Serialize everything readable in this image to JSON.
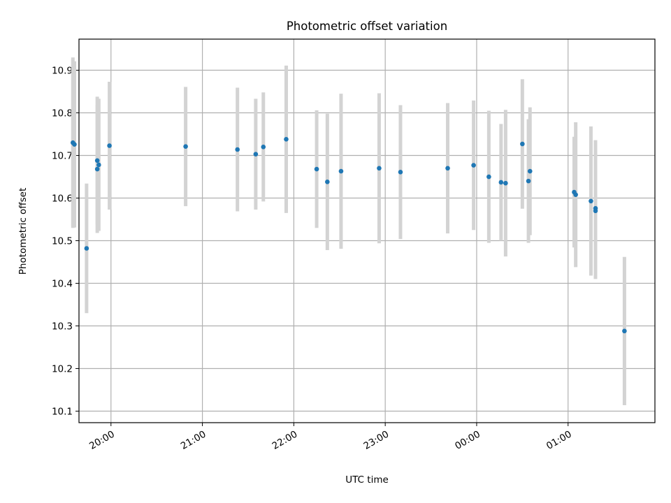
{
  "chart_data": {
    "type": "scatter",
    "title": "Photometric offset variation",
    "xlabel": "UTC time",
    "ylabel": "Photometric offset",
    "xlim": [
      "19:39",
      "01:57"
    ],
    "ylim": [
      10.073,
      10.973
    ],
    "grid": true,
    "x_ticks": [
      "20:00",
      "21:00",
      "22:00",
      "23:00",
      "00:00",
      "01:00"
    ],
    "y_ticks": [
      "10.1",
      "10.2",
      "10.3",
      "10.4",
      "10.5",
      "10.6",
      "10.7",
      "10.8",
      "10.9"
    ],
    "colors": {
      "points": "#1f77b4",
      "errorbars": "#d3d3d3",
      "grid": "#b0b0b0"
    },
    "series": [
      {
        "points": [
          {
            "x": "19:35",
            "y": 10.73,
            "err": 0.2
          },
          {
            "x": "19:36",
            "y": 10.726,
            "err": 0.195
          },
          {
            "x": "19:44",
            "y": 10.482,
            "err": 0.152
          },
          {
            "x": "19:51",
            "y": 10.688,
            "err": 0.15
          },
          {
            "x": "19:51",
            "y": 10.668,
            "err": 0.15
          },
          {
            "x": "19:52",
            "y": 10.678,
            "err": 0.155
          },
          {
            "x": "19:59",
            "y": 10.723,
            "err": 0.15
          },
          {
            "x": "20:49",
            "y": 10.721,
            "err": 0.14
          },
          {
            "x": "21:23",
            "y": 10.714,
            "err": 0.145
          },
          {
            "x": "21:35",
            "y": 10.703,
            "err": 0.13
          },
          {
            "x": "21:40",
            "y": 10.72,
            "err": 0.128
          },
          {
            "x": "21:55",
            "y": 10.738,
            "err": 0.173
          },
          {
            "x": "22:15",
            "y": 10.668,
            "err": 0.138
          },
          {
            "x": "22:22",
            "y": 10.638,
            "err": 0.16
          },
          {
            "x": "22:31",
            "y": 10.663,
            "err": 0.182
          },
          {
            "x": "22:56",
            "y": 10.67,
            "err": 0.176
          },
          {
            "x": "23:10",
            "y": 10.661,
            "err": 0.157
          },
          {
            "x": "23:41",
            "y": 10.67,
            "err": 0.153
          },
          {
            "x": "23:58",
            "y": 10.677,
            "err": 0.152
          },
          {
            "x": "00:08",
            "y": 10.65,
            "err": 0.155
          },
          {
            "x": "00:16",
            "y": 10.637,
            "err": 0.137
          },
          {
            "x": "00:19",
            "y": 10.635,
            "err": 0.172
          },
          {
            "x": "00:30",
            "y": 10.727,
            "err": 0.152
          },
          {
            "x": "00:34",
            "y": 10.64,
            "err": 0.145
          },
          {
            "x": "00:35",
            "y": 10.663,
            "err": 0.15
          },
          {
            "x": "01:04",
            "y": 10.614,
            "err": 0.13
          },
          {
            "x": "01:05",
            "y": 10.608,
            "err": 0.17
          },
          {
            "x": "01:15",
            "y": 10.593,
            "err": 0.175
          },
          {
            "x": "01:18",
            "y": 10.576,
            "err": 0.16
          },
          {
            "x": "01:18",
            "y": 10.57,
            "err": 0.16
          },
          {
            "x": "01:37",
            "y": 10.288,
            "err": 0.174
          }
        ]
      }
    ]
  }
}
